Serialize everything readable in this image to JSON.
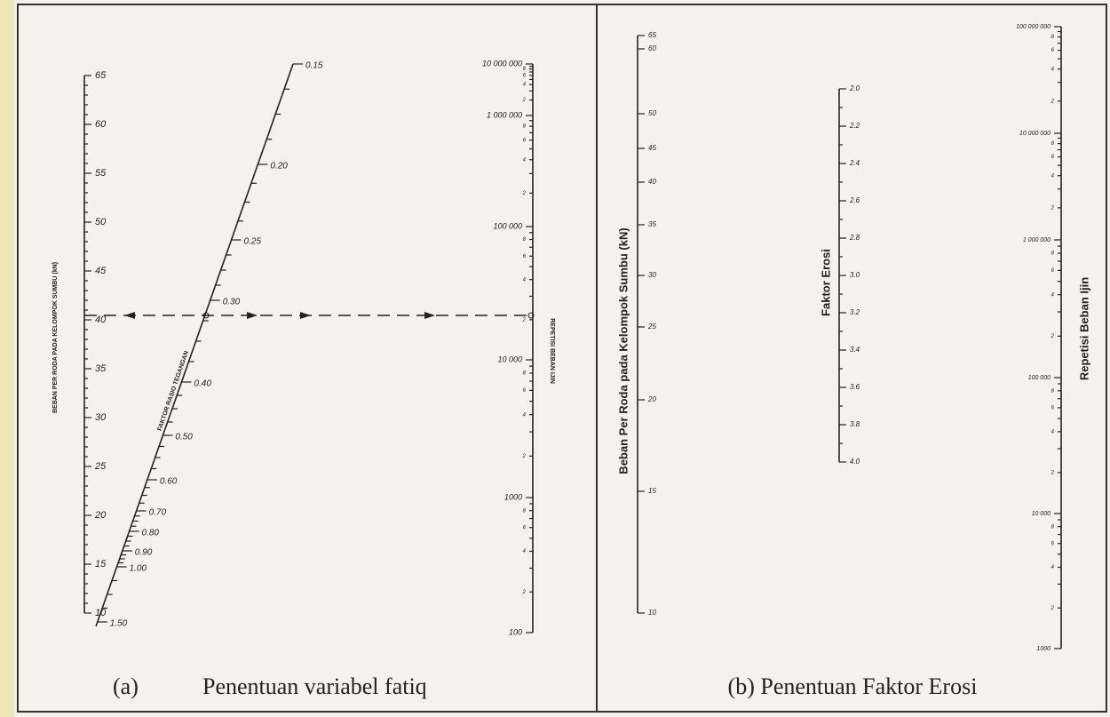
{
  "panels": [
    {
      "label": "(a)",
      "caption": "Penentuan variabel fatiq",
      "scales": [
        {
          "title": "BEBAN PER RODA PADA KELOMPOK SUMBU (kN)",
          "ticks": [
            "65",
            "60",
            "55",
            "50",
            "45",
            "40",
            "35",
            "30",
            "25",
            "20",
            "15",
            "10"
          ]
        },
        {
          "title": "FAKTOR RASIO TEGANGAN",
          "ticks": [
            "0.15",
            "0.20",
            "0.25",
            "0.30",
            "0.40",
            "0.50",
            "0.60",
            "0.70",
            "0.80",
            "0.90",
            "1.00",
            "1.50"
          ]
        },
        {
          "title": "REPETISI BEBAN IJIN",
          "ticks": [
            "10 000 000",
            "1 000 000",
            "100 000",
            "10 000",
            "1000",
            "100"
          ],
          "minor_ticks": [
            "8",
            "6",
            "4",
            "2"
          ]
        }
      ]
    },
    {
      "caption": "(b) Penentuan Faktor Erosi",
      "scales": [
        {
          "title": "Beban Per Roda pada Kelompok Sumbu (kN)",
          "ticks": [
            "65",
            "60",
            "50",
            "45",
            "40",
            "35",
            "30",
            "25",
            "20",
            "15",
            "10"
          ]
        },
        {
          "title": "Faktor Erosi",
          "ticks": [
            "2.0",
            "2.2",
            "2.4",
            "2.6",
            "2.8",
            "3.0",
            "3.2",
            "3.4",
            "3.6",
            "3.8",
            "4.0"
          ]
        },
        {
          "title": "Repetisi Beban Ijin",
          "ticks": [
            "100 000 000",
            "10 000 000",
            "1 000 000",
            "100 000",
            "10 000",
            "1000"
          ],
          "minor_ticks": [
            "8",
            "6",
            "4",
            "2"
          ]
        }
      ]
    }
  ]
}
